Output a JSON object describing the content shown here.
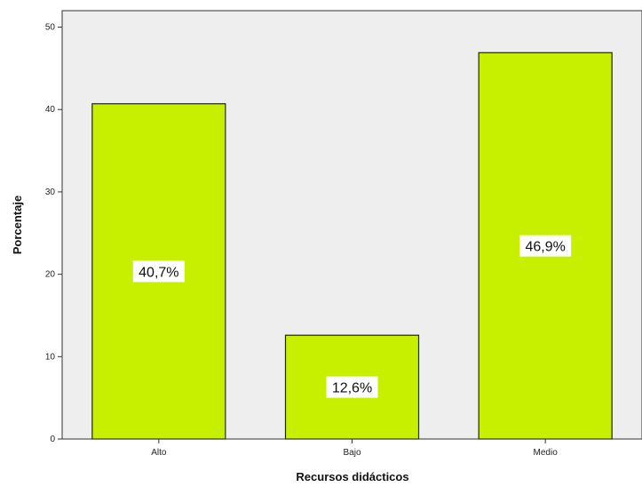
{
  "chart_data": {
    "type": "bar",
    "title": "",
    "xlabel": "Recursos didácticos",
    "ylabel": "Porcentaje",
    "categories": [
      "Alto",
      "Bajo",
      "Medio"
    ],
    "values": [
      40.7,
      12.6,
      46.9
    ],
    "data_labels": [
      "40,7%",
      "12,6%",
      "46,9%"
    ],
    "y_ticks": [
      0,
      10,
      20,
      30,
      40,
      50
    ],
    "y_tick_labels": [
      "0",
      "10",
      "20",
      "30",
      "40",
      "50"
    ],
    "ylim": [
      0,
      52
    ],
    "grid": false,
    "legend": "none",
    "colors": {
      "bar_fill": "#c6f000",
      "bar_stroke": "#222222",
      "plot_background": "#eeeeee",
      "axis": "#333333",
      "label_box": "#ffffff"
    }
  }
}
